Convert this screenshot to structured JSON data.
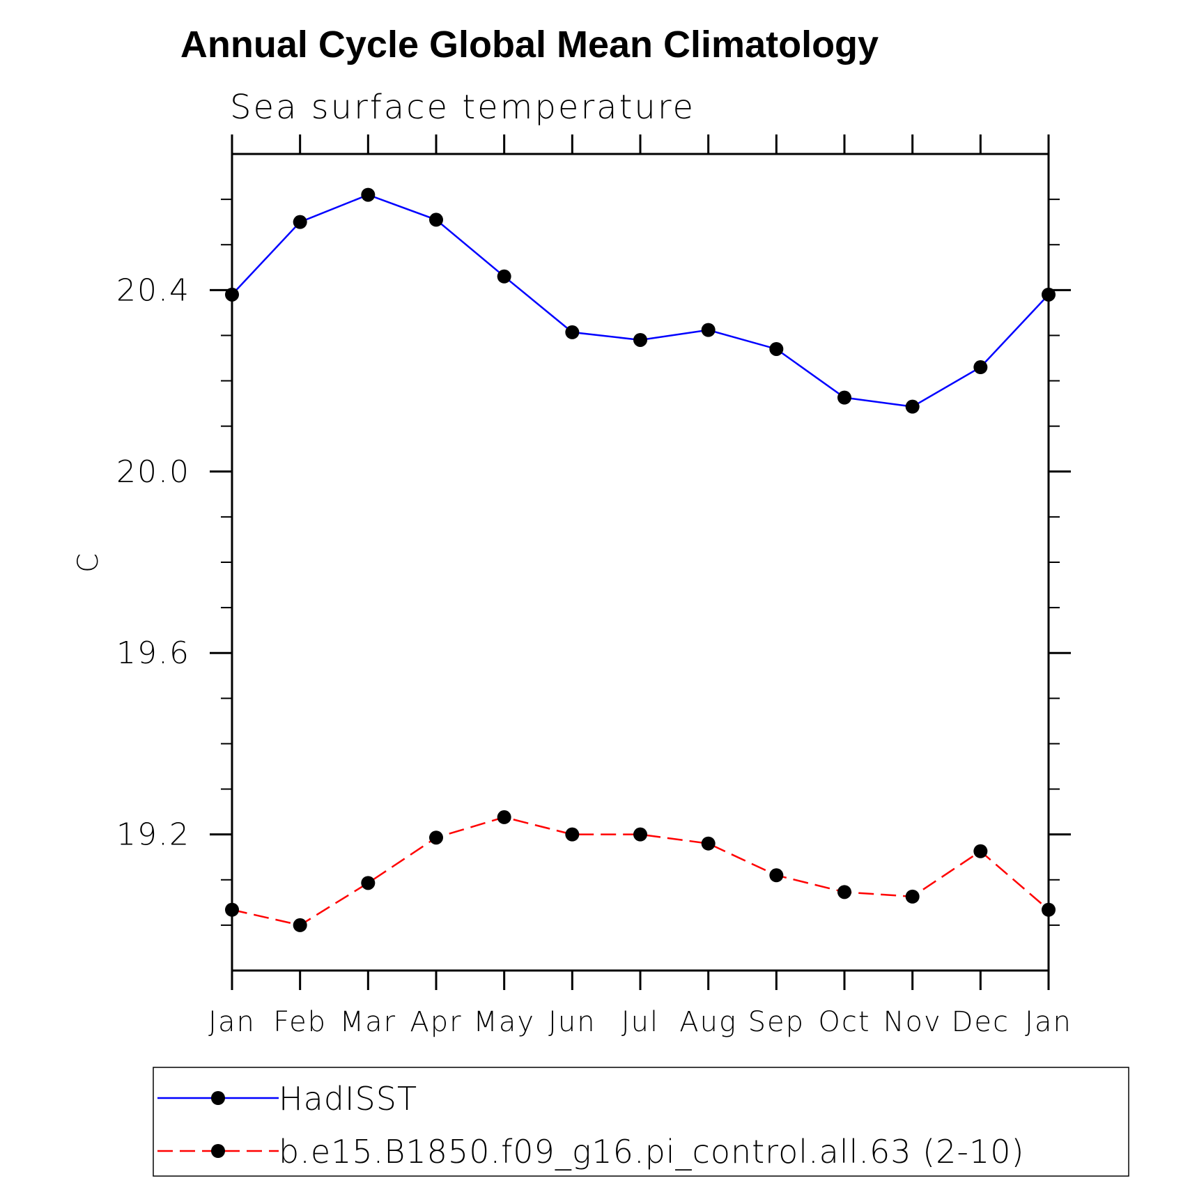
{
  "chart_data": {
    "type": "line",
    "title": "Annual Cycle Global Mean Climatology",
    "subtitle": "Sea surface temperature",
    "xlabel": "",
    "ylabel": "C",
    "categories": [
      "Jan",
      "Feb",
      "Mar",
      "Apr",
      "May",
      "Jun",
      "Jul",
      "Aug",
      "Sep",
      "Oct",
      "Nov",
      "Dec",
      "Jan"
    ],
    "ylim": [
      18.9,
      20.7
    ],
    "y_major_ticks": [
      19.2,
      19.6,
      20.0,
      20.4
    ],
    "y_major_tick_labels": [
      "19.2",
      "19.6",
      "20.0",
      "20.4"
    ],
    "y_minor_step": 0.1,
    "grid": false,
    "legend_position": "bottom",
    "series": [
      {
        "name": "HadISST",
        "color": "#0000ff",
        "line_style": "solid",
        "marker": "filled-circle",
        "values": [
          20.39,
          20.55,
          20.61,
          20.555,
          20.43,
          20.307,
          20.29,
          20.312,
          20.27,
          20.163,
          20.143,
          20.23,
          20.39
        ]
      },
      {
        "name": "b.e15.B1850.f09_g16.pi_control.all.63 (2-10)",
        "color": "#ff0000",
        "line_style": "dashed",
        "marker": "filled-circle",
        "values": [
          19.034,
          19.0,
          19.093,
          19.193,
          19.238,
          19.2,
          19.2,
          19.18,
          19.11,
          19.073,
          19.063,
          19.163,
          19.034
        ]
      }
    ]
  }
}
